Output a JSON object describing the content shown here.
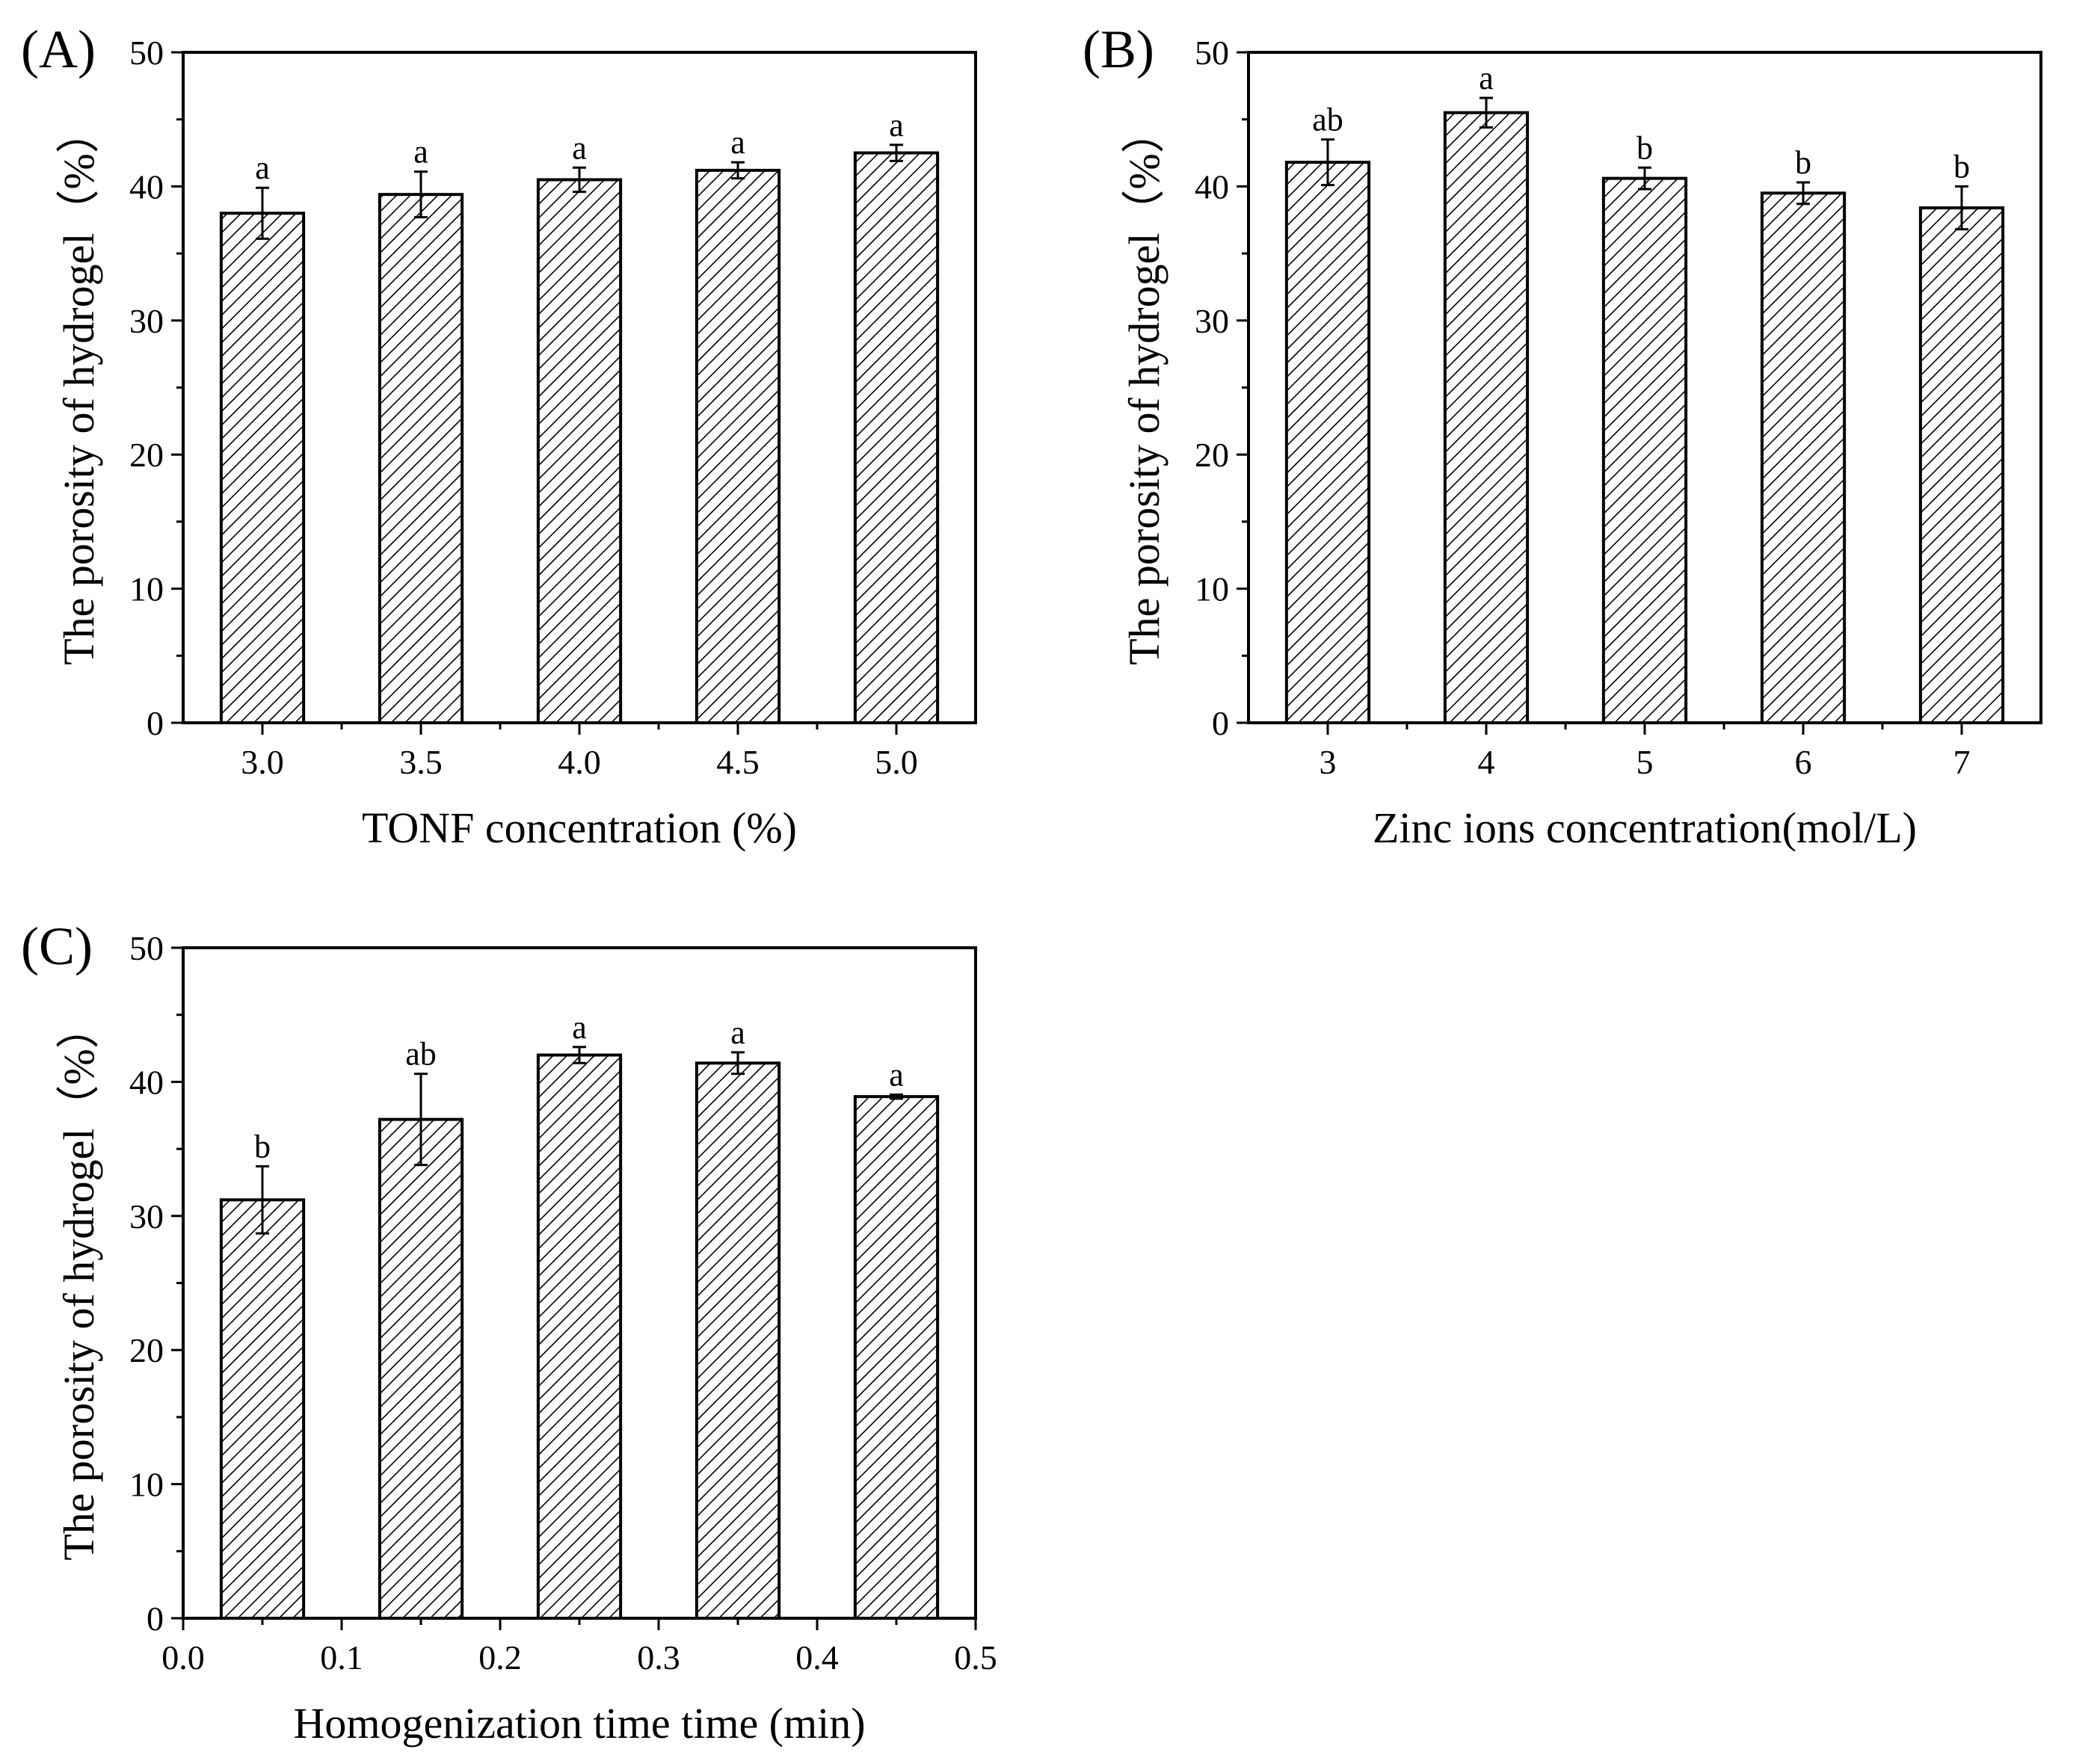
{
  "chart_data": [
    {
      "type": "bar",
      "panel_label": "(A)",
      "categories": [
        "3.0",
        "3.5",
        "4.0",
        "4.5",
        "5.0"
      ],
      "values": [
        38.0,
        39.4,
        40.5,
        41.2,
        42.5
      ],
      "errors": [
        1.9,
        1.7,
        0.9,
        0.6,
        0.6
      ],
      "significance": [
        "a",
        "a",
        "a",
        "a",
        "a"
      ],
      "xlabel": "TONF concentration (%)",
      "ylabel": "The porosity of hydrogel（%）",
      "ylim": [
        0,
        50
      ],
      "yticks": [
        "0",
        "10",
        "20",
        "30",
        "40",
        "50"
      ],
      "bar_fill": "diagonal-hatch"
    },
    {
      "type": "bar",
      "panel_label": "(B)",
      "categories": [
        "3",
        "4",
        "5",
        "6",
        "7"
      ],
      "values": [
        41.8,
        45.5,
        40.6,
        39.5,
        38.4
      ],
      "errors": [
        1.7,
        1.1,
        0.8,
        0.8,
        1.6
      ],
      "significance": [
        "ab",
        "a",
        "b",
        "b",
        "b"
      ],
      "xlabel": "Zinc ions concentration(mol/L)",
      "ylabel": "The porosity of hydrogel（%）",
      "ylim": [
        0,
        50
      ],
      "yticks": [
        "0",
        "10",
        "20",
        "30",
        "40",
        "50"
      ],
      "bar_fill": "diagonal-hatch"
    },
    {
      "type": "bar",
      "panel_label": "(C)",
      "x": [
        0.05,
        0.15,
        0.25,
        0.35,
        0.45
      ],
      "values": [
        31.2,
        37.2,
        42.0,
        41.4,
        38.9
      ],
      "errors": [
        2.5,
        3.4,
        0.6,
        0.8,
        0.15
      ],
      "significance": [
        "b",
        "ab",
        "a",
        "a",
        "a"
      ],
      "xlabel": "Homogenization time time (min)",
      "ylabel": "The porosity of hydrogel（%）",
      "xlim": [
        0.0,
        0.5
      ],
      "xticks": [
        "0.0",
        "0.1",
        "0.2",
        "0.3",
        "0.4",
        "0.5"
      ],
      "ylim": [
        0,
        50
      ],
      "yticks": [
        "0",
        "10",
        "20",
        "30",
        "40",
        "50"
      ],
      "bar_fill": "diagonal-hatch"
    }
  ],
  "colors": {
    "bar_fill": "#ffffff",
    "hatch": "#000000",
    "axis": "#000000"
  }
}
